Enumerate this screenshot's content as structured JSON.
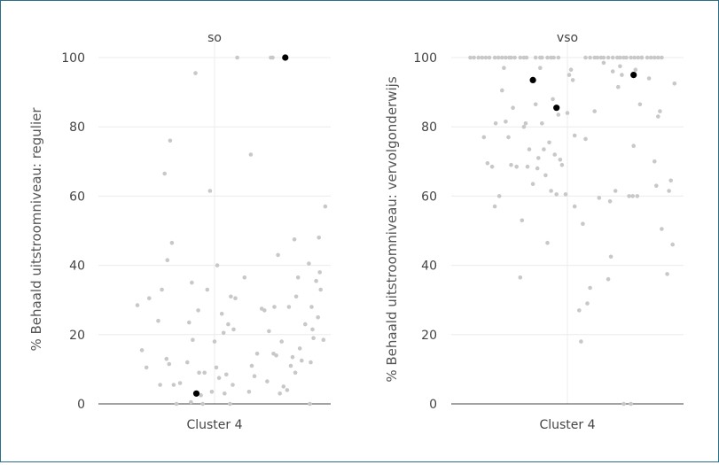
{
  "chart_data": [
    {
      "type": "scatter",
      "title": "so",
      "xlabel": "",
      "ylabel": "% Behaald uitstroomniveau: regulier",
      "categories": [
        "Cluster 4"
      ],
      "ylim": [
        0,
        100
      ],
      "yticks": [
        "0",
        "20",
        "40",
        "60",
        "80",
        "100"
      ],
      "grid": true,
      "colors": {
        "others": "#c8c8c8",
        "highlight": "#000000"
      },
      "series": [
        {
          "values": [
            [
              -0.85,
              28.5
            ],
            [
              -0.8,
              15.5
            ],
            [
              -0.75,
              10.5
            ],
            [
              -0.72,
              30.5
            ],
            [
              -0.62,
              24
            ],
            [
              -0.6,
              5.5
            ],
            [
              -0.58,
              33
            ],
            [
              -0.55,
              66.5
            ],
            [
              -0.53,
              13
            ],
            [
              -0.52,
              41.5
            ],
            [
              -0.5,
              11.5
            ],
            [
              -0.49,
              76
            ],
            [
              -0.47,
              46.5
            ],
            [
              -0.45,
              5.5
            ],
            [
              -0.42,
              0
            ],
            [
              -0.38,
              6
            ],
            [
              -0.3,
              12
            ],
            [
              -0.28,
              23.5
            ],
            [
              -0.26,
              0.5
            ],
            [
              -0.25,
              35
            ],
            [
              -0.24,
              18.5
            ],
            [
              -0.21,
              95.5
            ],
            [
              -0.18,
              27
            ],
            [
              -0.17,
              9
            ],
            [
              -0.15,
              2.5
            ],
            [
              -0.13,
              0
            ],
            [
              -0.11,
              9
            ],
            [
              -0.08,
              33
            ],
            [
              -0.05,
              61.5
            ],
            [
              -0.03,
              3.5
            ],
            [
              0.0,
              18
            ],
            [
              0.02,
              10.5
            ],
            [
              0.03,
              40
            ],
            [
              0.05,
              7.5
            ],
            [
              0.08,
              26
            ],
            [
              0.1,
              20.5
            ],
            [
              0.11,
              3
            ],
            [
              0.13,
              8.5
            ],
            [
              0.15,
              23
            ],
            [
              0.17,
              0
            ],
            [
              0.18,
              31
            ],
            [
              0.2,
              5.5
            ],
            [
              0.21,
              21.5
            ],
            [
              0.23,
              30.5
            ],
            [
              0.25,
              100
            ],
            [
              0.33,
              36.5
            ],
            [
              0.38,
              3.5
            ],
            [
              0.4,
              72
            ],
            [
              0.41,
              11
            ],
            [
              0.44,
              8
            ],
            [
              0.47,
              14.5
            ],
            [
              0.52,
              27.5
            ],
            [
              0.55,
              27
            ],
            [
              0.58,
              6.5
            ],
            [
              0.6,
              21
            ],
            [
              0.62,
              100
            ],
            [
              0.64,
              100
            ],
            [
              0.65,
              14.5
            ],
            [
              0.66,
              28
            ],
            [
              0.68,
              14
            ],
            [
              0.7,
              43
            ],
            [
              0.72,
              3
            ],
            [
              0.74,
              18
            ],
            [
              0.76,
              5
            ],
            [
              0.8,
              4
            ],
            [
              0.82,
              28
            ],
            [
              0.84,
              11
            ],
            [
              0.86,
              13.5
            ],
            [
              0.88,
              47.5
            ],
            [
              0.89,
              9
            ],
            [
              0.9,
              31
            ],
            [
              0.92,
              36.5
            ],
            [
              0.94,
              16
            ],
            [
              0.96,
              12.5
            ],
            [
              1.0,
              23
            ],
            [
              1.04,
              40.5
            ],
            [
              1.05,
              0
            ],
            [
              1.06,
              12
            ],
            [
              1.07,
              28
            ],
            [
              1.08,
              21.5
            ],
            [
              1.09,
              19
            ],
            [
              1.12,
              35.5
            ],
            [
              1.14,
              25
            ],
            [
              1.15,
              48
            ],
            [
              1.16,
              38
            ],
            [
              1.17,
              33
            ],
            [
              1.2,
              18.5
            ],
            [
              1.22,
              57
            ]
          ]
        },
        {
          "values": [
            [
              -0.2,
              3
            ],
            [
              0.78,
              100
            ]
          ]
        }
      ]
    },
    {
      "type": "scatter",
      "title": "vso",
      "xlabel": "",
      "ylabel": "% Behaald uitstroomniveau: vervolgonderwijs",
      "categories": [
        "Cluster 4"
      ],
      "ylim": [
        0,
        100
      ],
      "yticks": [
        "0",
        "20",
        "40",
        "60",
        "80",
        "100"
      ],
      "grid": true,
      "colors": {
        "others": "#c8c8c8",
        "highlight": "#000000"
      },
      "series": [
        {
          "values": [
            [
              -1.07,
              100
            ],
            [
              -1.03,
              100
            ],
            [
              -0.98,
              100
            ],
            [
              -0.94,
              100
            ],
            [
              -0.9,
              100
            ],
            [
              -0.86,
              100
            ],
            [
              -0.8,
              100
            ],
            [
              -0.76,
              100
            ],
            [
              -0.72,
              100
            ],
            [
              -0.68,
              100
            ],
            [
              -0.64,
              100
            ],
            [
              -0.62,
              100
            ],
            [
              -0.58,
              100
            ],
            [
              -0.52,
              100
            ],
            [
              -0.48,
              100
            ],
            [
              -0.45,
              100
            ],
            [
              -0.35,
              100
            ],
            [
              -0.3,
              100
            ],
            [
              -0.28,
              100
            ],
            [
              -0.22,
              100
            ],
            [
              -0.18,
              100
            ],
            [
              -0.15,
              100
            ],
            [
              -0.1,
              100
            ],
            [
              -0.92,
              77
            ],
            [
              -0.88,
              69.5
            ],
            [
              -0.83,
              68.5
            ],
            [
              -0.8,
              57
            ],
            [
              -0.79,
              81
            ],
            [
              -0.75,
              60
            ],
            [
              -0.72,
              90.5
            ],
            [
              -0.7,
              97
            ],
            [
              -0.68,
              81.5
            ],
            [
              -0.65,
              77
            ],
            [
              -0.62,
              69
            ],
            [
              -0.6,
              85.5
            ],
            [
              -0.56,
              68.5
            ],
            [
              -0.52,
              36.5
            ],
            [
              -0.5,
              53
            ],
            [
              -0.48,
              80
            ],
            [
              -0.46,
              81
            ],
            [
              -0.44,
              68.5
            ],
            [
              -0.42,
              73.5
            ],
            [
              -0.38,
              63.5
            ],
            [
              -0.35,
              86.5
            ],
            [
              -0.33,
              68
            ],
            [
              -0.32,
              71
            ],
            [
              -0.3,
              97
            ],
            [
              -0.28,
              81
            ],
            [
              -0.26,
              73.5
            ],
            [
              -0.24,
              66
            ],
            [
              -0.22,
              46.5
            ],
            [
              -0.2,
              75.5
            ],
            [
              -0.18,
              61.5
            ],
            [
              -0.16,
              88
            ],
            [
              -0.14,
              72
            ],
            [
              -0.12,
              60.5
            ],
            [
              -0.1,
              83.5
            ],
            [
              -0.08,
              70.5
            ],
            [
              -0.06,
              69
            ],
            [
              -0.02,
              60.5
            ],
            [
              0.0,
              84
            ],
            [
              0.02,
              95
            ],
            [
              0.04,
              96.5
            ],
            [
              0.06,
              93.5
            ],
            [
              0.08,
              57
            ],
            [
              0.2,
              100
            ],
            [
              0.25,
              100
            ],
            [
              0.3,
              100
            ],
            [
              0.33,
              100
            ],
            [
              0.37,
              100
            ],
            [
              0.4,
              100
            ],
            [
              0.45,
              100
            ],
            [
              0.5,
              100
            ],
            [
              0.55,
              100
            ],
            [
              0.58,
              100
            ],
            [
              0.62,
              100
            ],
            [
              0.65,
              100
            ],
            [
              0.7,
              100
            ],
            [
              0.74,
              100
            ],
            [
              0.78,
              100
            ],
            [
              0.82,
              100
            ],
            [
              0.88,
              100
            ],
            [
              0.92,
              100
            ],
            [
              0.96,
              100
            ],
            [
              1.0,
              100
            ],
            [
              1.04,
              100
            ],
            [
              0.08,
              77.5
            ],
            [
              0.13,
              27
            ],
            [
              0.15,
              18
            ],
            [
              0.17,
              52
            ],
            [
              0.2,
              76.5
            ],
            [
              0.22,
              29
            ],
            [
              0.25,
              33.5
            ],
            [
              0.3,
              84.5
            ],
            [
              0.35,
              59.5
            ],
            [
              0.4,
              98.5
            ],
            [
              0.45,
              36
            ],
            [
              0.47,
              58.5
            ],
            [
              0.48,
              42.5
            ],
            [
              0.5,
              96
            ],
            [
              0.53,
              61.5
            ],
            [
              0.56,
              91.5
            ],
            [
              0.58,
              97.5
            ],
            [
              0.6,
              95
            ],
            [
              0.62,
              0
            ],
            [
              0.68,
              60
            ],
            [
              0.7,
              0
            ],
            [
              0.72,
              60
            ],
            [
              0.73,
              74.5
            ],
            [
              0.75,
              96.5
            ],
            [
              0.77,
              60
            ],
            [
              0.8,
              86.5
            ],
            [
              0.82,
              100
            ],
            [
              0.9,
              94
            ],
            [
              0.96,
              70
            ],
            [
              0.98,
              63
            ],
            [
              1.0,
              83
            ],
            [
              1.02,
              84.5
            ],
            [
              1.04,
              50.5
            ],
            [
              1.1,
              37.5
            ],
            [
              1.12,
              61.5
            ],
            [
              1.14,
              64.5
            ],
            [
              1.16,
              46
            ],
            [
              1.18,
              92.5
            ]
          ]
        },
        {
          "values": [
            [
              -0.38,
              93.5
            ],
            [
              -0.12,
              85.5
            ],
            [
              0.73,
              95
            ]
          ]
        }
      ]
    }
  ]
}
